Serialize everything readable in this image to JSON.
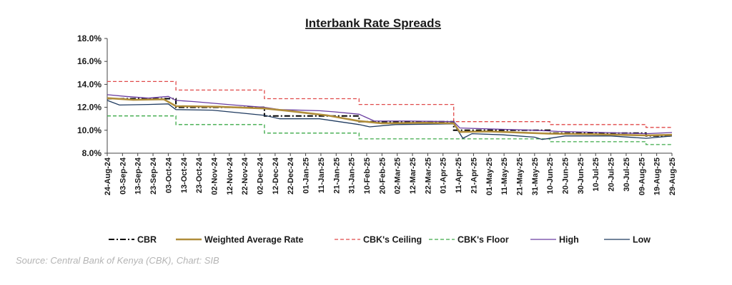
{
  "chart_data": {
    "type": "line",
    "title": "Interbank Rate Spreads",
    "xlabel": "",
    "ylabel": "",
    "y_tick_labels": [
      "8.0%",
      "10.0%",
      "12.0%",
      "14.0%",
      "16.0%",
      "18.0%"
    ],
    "ylim": [
      8,
      18
    ],
    "y_unit": "%",
    "x_tick_labels": [
      "24-Aug-24",
      "03-Sep-24",
      "13-Sep-24",
      "23-Sep-24",
      "03-Oct-24",
      "13-Oct-24",
      "23-Oct-24",
      "02-Nov-24",
      "12-Nov-24",
      "22-Nov-24",
      "02-Dec-24",
      "12-Dec-24",
      "22-Dec-24",
      "01-Jan-25",
      "11-Jan-25",
      "21-Jan-25",
      "31-Jan-25",
      "10-Feb-25",
      "20-Feb-25",
      "02-Mar-25",
      "12-Mar-25",
      "22-Mar-25",
      "01-Apr-25",
      "11-Apr-25",
      "21-Apr-25",
      "01-May-25",
      "11-May-25",
      "21-May-25",
      "31-May-25",
      "10-Jun-25",
      "20-Jun-25",
      "30-Jun-25",
      "10-Jul-25",
      "20-Jul-25",
      "30-Jul-25",
      "09-Aug-25",
      "19-Aug-25",
      "29-Aug-25"
    ],
    "x_range": [
      "2024-08-24",
      "2025-08-29"
    ],
    "grid": false,
    "legend_position": "bottom",
    "series": [
      {
        "name": "CBR",
        "style": "dash-dot",
        "color": "#000000",
        "x": [
          "2024-08-24",
          "2024-10-08",
          "2024-12-05",
          "2025-02-05",
          "2025-04-08",
          "2025-06-10",
          "2025-08-12",
          "2025-08-29"
        ],
        "y": [
          12.75,
          12.0,
          11.25,
          10.75,
          10.0,
          9.75,
          9.5,
          9.5
        ]
      },
      {
        "name": "Weighted Average Rate",
        "style": "solid",
        "color": "#b08d3a",
        "x": [
          "2024-08-24",
          "2024-09-10",
          "2024-09-30",
          "2024-10-08",
          "2024-11-05",
          "2024-12-05",
          "2024-12-20",
          "2025-01-15",
          "2025-02-05",
          "2025-02-20",
          "2025-03-20",
          "2025-04-08",
          "2025-04-12",
          "2025-05-01",
          "2025-06-10",
          "2025-07-10",
          "2025-08-12",
          "2025-08-29"
        ],
        "y": [
          12.8,
          12.65,
          12.7,
          12.1,
          12.05,
          11.9,
          11.7,
          11.3,
          10.8,
          10.6,
          10.65,
          10.6,
          9.85,
          9.9,
          9.7,
          9.65,
          9.55,
          9.6
        ]
      },
      {
        "name": "CBK's Ceiling",
        "style": "dashed",
        "color": "#e04a4a",
        "x": [
          "2024-08-24",
          "2024-10-08",
          "2024-12-05",
          "2025-02-05",
          "2025-04-08",
          "2025-06-10",
          "2025-08-12",
          "2025-08-29"
        ],
        "y": [
          14.25,
          13.5,
          12.75,
          12.25,
          10.75,
          10.5,
          10.25,
          10.25
        ]
      },
      {
        "name": "CBK's Floor",
        "style": "dashed",
        "color": "#3daa49",
        "x": [
          "2024-08-24",
          "2024-10-08",
          "2024-12-05",
          "2025-02-05",
          "2025-04-08",
          "2025-06-10",
          "2025-08-12",
          "2025-08-29"
        ],
        "y": [
          11.25,
          10.5,
          9.75,
          9.25,
          9.25,
          9.0,
          8.75,
          8.75
        ]
      },
      {
        "name": "High",
        "style": "solid",
        "color": "#6a3ea1",
        "x": [
          "2024-08-24",
          "2024-09-05",
          "2024-09-20",
          "2024-10-03",
          "2024-10-08",
          "2024-10-20",
          "2024-11-15",
          "2024-12-05",
          "2024-12-15",
          "2025-01-10",
          "2025-01-20",
          "2025-02-05",
          "2025-02-15",
          "2025-03-10",
          "2025-04-08",
          "2025-04-12",
          "2025-05-05",
          "2025-05-31",
          "2025-06-15",
          "2025-07-15",
          "2025-08-12",
          "2025-08-29"
        ],
        "y": [
          13.1,
          12.95,
          12.8,
          12.95,
          12.6,
          12.5,
          12.2,
          12.0,
          11.8,
          11.7,
          11.6,
          11.4,
          10.8,
          10.8,
          10.75,
          10.2,
          10.1,
          10.0,
          9.9,
          9.8,
          9.7,
          9.8
        ]
      },
      {
        "name": "Low",
        "style": "solid",
        "color": "#1f3a5f",
        "x": [
          "2024-08-24",
          "2024-09-01",
          "2024-09-20",
          "2024-10-03",
          "2024-10-08",
          "2024-11-01",
          "2024-12-05",
          "2024-12-15",
          "2025-01-10",
          "2025-02-05",
          "2025-02-12",
          "2025-03-01",
          "2025-04-08",
          "2025-04-14",
          "2025-04-20",
          "2025-05-10",
          "2025-05-31",
          "2025-06-05",
          "2025-06-20",
          "2025-07-20",
          "2025-08-12",
          "2025-08-29"
        ],
        "y": [
          12.6,
          12.2,
          12.25,
          12.3,
          11.8,
          11.75,
          11.3,
          11.0,
          11.0,
          10.5,
          10.3,
          10.5,
          10.55,
          9.3,
          9.7,
          9.6,
          9.4,
          9.2,
          9.5,
          9.5,
          9.3,
          9.5
        ]
      }
    ]
  },
  "source": "Source: Central Bank of Kenya (CBK), Chart: SIB"
}
